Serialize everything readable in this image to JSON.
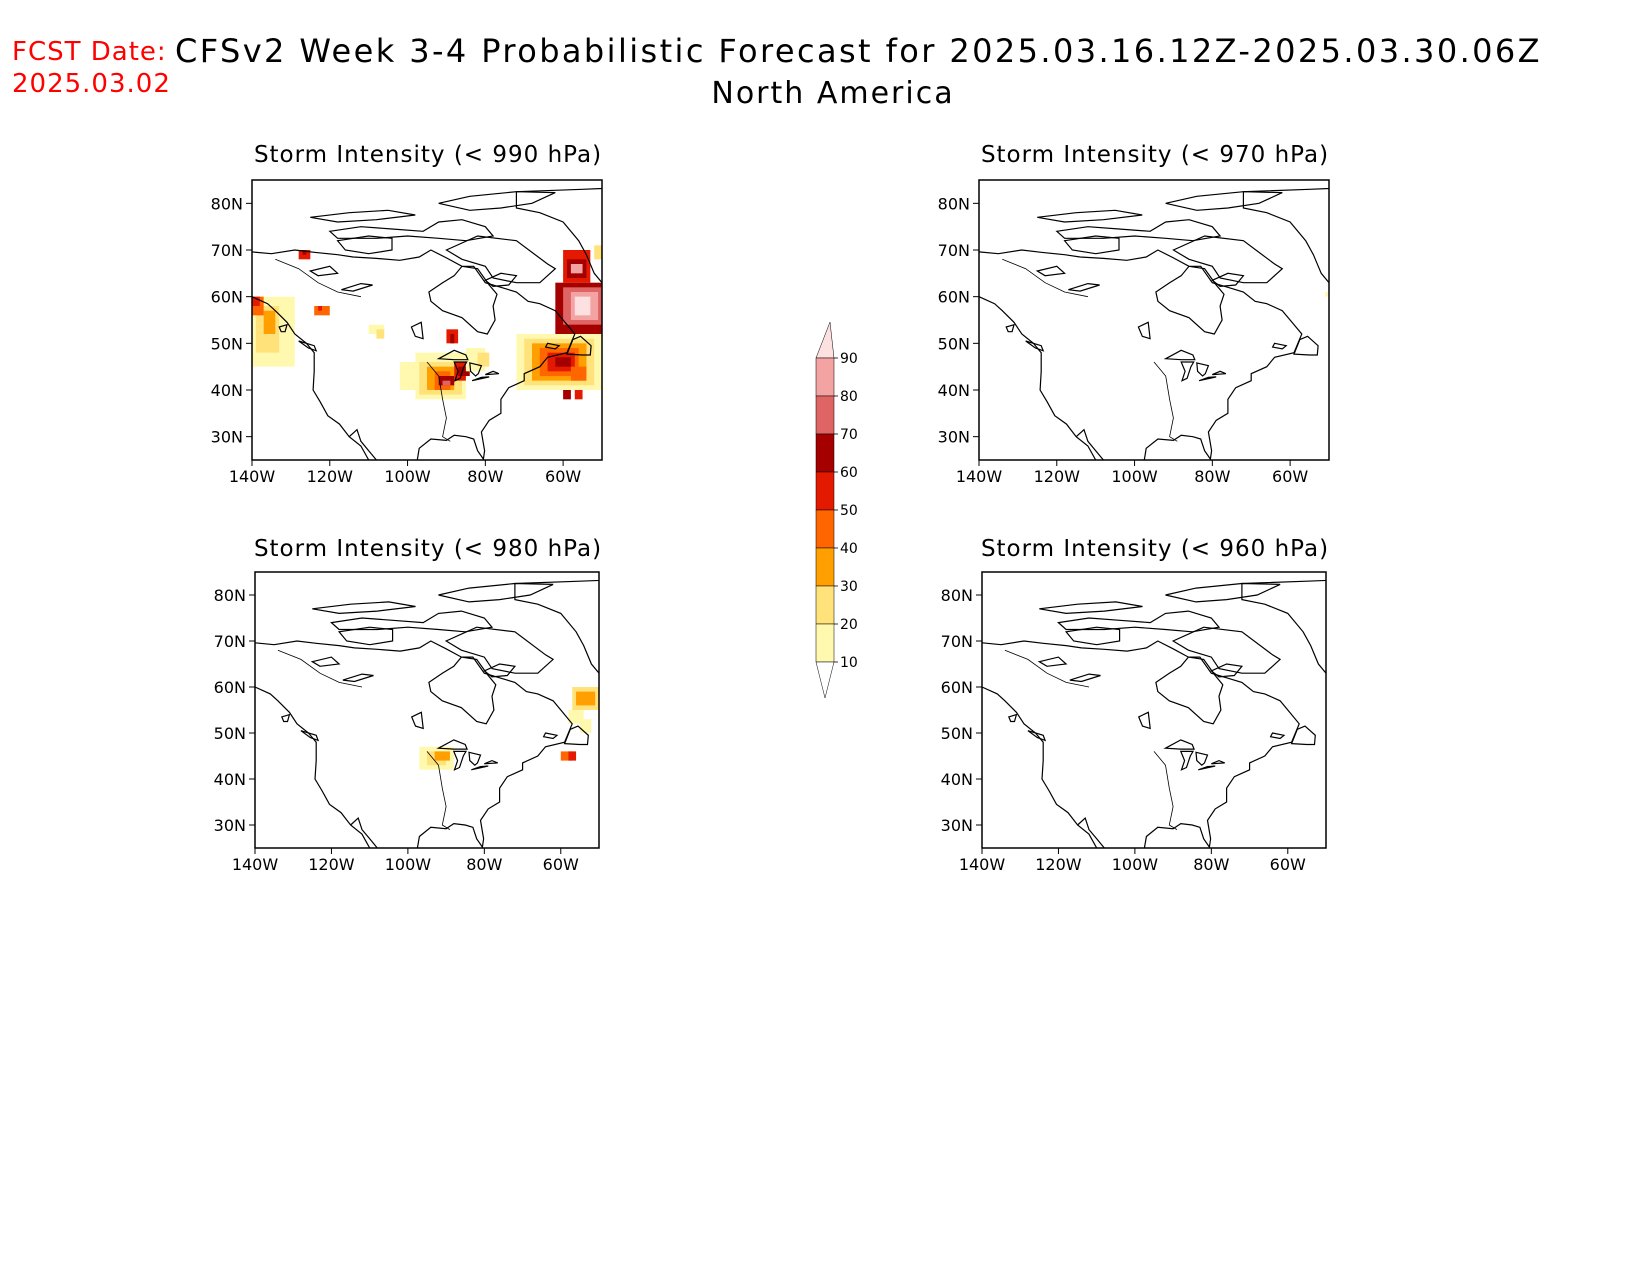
{
  "header": {
    "fcst_label": "FCST Date:",
    "fcst_date": "2025.03.02",
    "title": "CFSv2 Week 3-4 Probabilistic Forecast for 2025.03.16.12Z-2025.03.30.06Z",
    "region": "North America"
  },
  "map_axes": {
    "lon_ticks": [
      "140W",
      "120W",
      "100W",
      "80W",
      "60W"
    ],
    "lat_ticks": [
      "30N",
      "40N",
      "50N",
      "60N",
      "70N",
      "80N"
    ],
    "lon_range": [
      -140,
      -50
    ],
    "lat_range": [
      25,
      85
    ]
  },
  "panels": [
    {
      "id": "p990",
      "title": "Storm Intensity (< 990 hPa)"
    },
    {
      "id": "p970",
      "title": "Storm Intensity (< 970 hPa)"
    },
    {
      "id": "p980",
      "title": "Storm Intensity (< 980 hPa)"
    },
    {
      "id": "p960",
      "title": "Storm Intensity (< 960 hPa)"
    }
  ],
  "colorbar": {
    "levels": [
      "10",
      "20",
      "30",
      "40",
      "50",
      "60",
      "70",
      "80",
      "90"
    ],
    "colors": [
      "#fff9b0",
      "#ffe27a",
      "#ffa000",
      "#ff6600",
      "#e31a00",
      "#a50000",
      "#df6464",
      "#f4a3a3",
      "#fde0e0"
    ]
  },
  "colors": {
    "date": "#ff0000",
    "outline": "#000000"
  }
}
